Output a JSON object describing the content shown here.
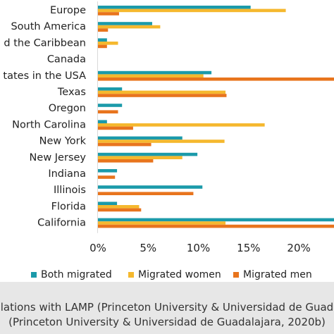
{
  "chart_data": {
    "type": "bar",
    "orientation": "horizontal",
    "categories": [
      "Europe",
      "South America",
      "Latin America and the Caribbean",
      "Canada",
      "United States in the USA",
      "Texas",
      "Oregon",
      "North Carolina",
      "New York",
      "New Jersey",
      "Indiana",
      "Illinois",
      "Florida",
      "California"
    ],
    "category_labels_visible": [
      "Europe",
      "South America",
      "d the Caribbean",
      "Canada",
      "tates in the USA",
      "Texas",
      "Oregon",
      "North Carolina",
      "New York",
      "New Jersey",
      "Indiana",
      "Illinois",
      "Florida",
      "California"
    ],
    "series": [
      {
        "name": "Both migrated",
        "color": "#1b9aaa",
        "values": [
          15.2,
          5.4,
          0.9,
          0,
          11.3,
          2.4,
          2.4,
          0.9,
          8.4,
          9.9,
          1.9,
          10.4,
          1.9,
          24.0
        ]
      },
      {
        "name": "Migrated women",
        "color": "#f5b82e",
        "values": [
          18.7,
          6.2,
          2.0,
          0,
          10.5,
          12.7,
          0,
          16.6,
          12.6,
          8.4,
          0,
          0,
          4.1,
          12.7
        ]
      },
      {
        "name": "Migrated men",
        "color": "#e8741d",
        "values": [
          2.1,
          1.0,
          0.9,
          0,
          24.0,
          12.8,
          2.0,
          3.5,
          5.3,
          5.5,
          1.7,
          9.5,
          4.3,
          24.0
        ]
      }
    ],
    "x_ticks": [
      "0%",
      "5%",
      "10%",
      "15%",
      "20%"
    ],
    "xlim": [
      0,
      23.5
    ],
    "grid": false,
    "legend_position": "bottom"
  },
  "source": {
    "line1": "lations with LAMP (Princeton University & Universidad de Guad",
    "line2": "(Princeton University & Universidad de Guadalajara, 2020b)"
  }
}
